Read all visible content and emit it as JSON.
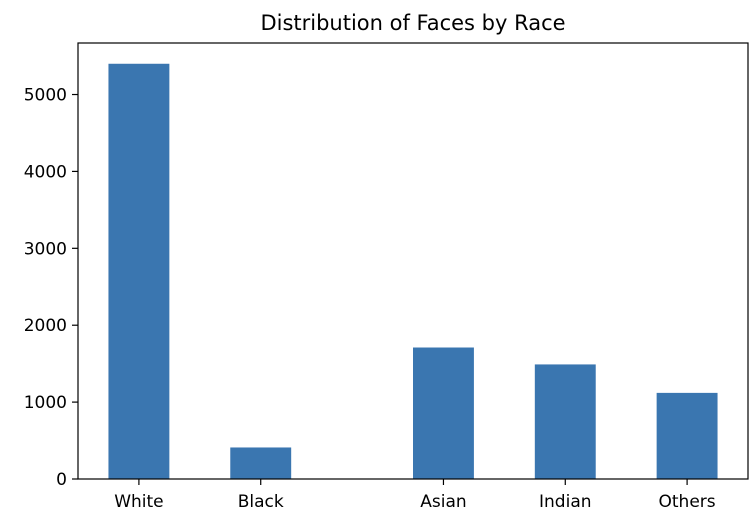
{
  "chart_data": {
    "type": "bar",
    "title": "Distribution of Faces by Race",
    "xlabel": "",
    "ylabel": "",
    "categories": [
      "White",
      "Black",
      "Asian",
      "Indian",
      "Others"
    ],
    "x": [
      0,
      1,
      2.5,
      3.5,
      4.5
    ],
    "values": [
      5400,
      410,
      1710,
      1490,
      1120
    ],
    "ylim": [
      0,
      5670
    ],
    "yticks": [
      0,
      1000,
      2000,
      3000,
      4000,
      5000
    ],
    "ytick_labels": [
      "0",
      "1000",
      "2000",
      "3000",
      "4000",
      "5000"
    ],
    "grid": false,
    "legend": "none",
    "bar_color": "#3a76b0"
  }
}
